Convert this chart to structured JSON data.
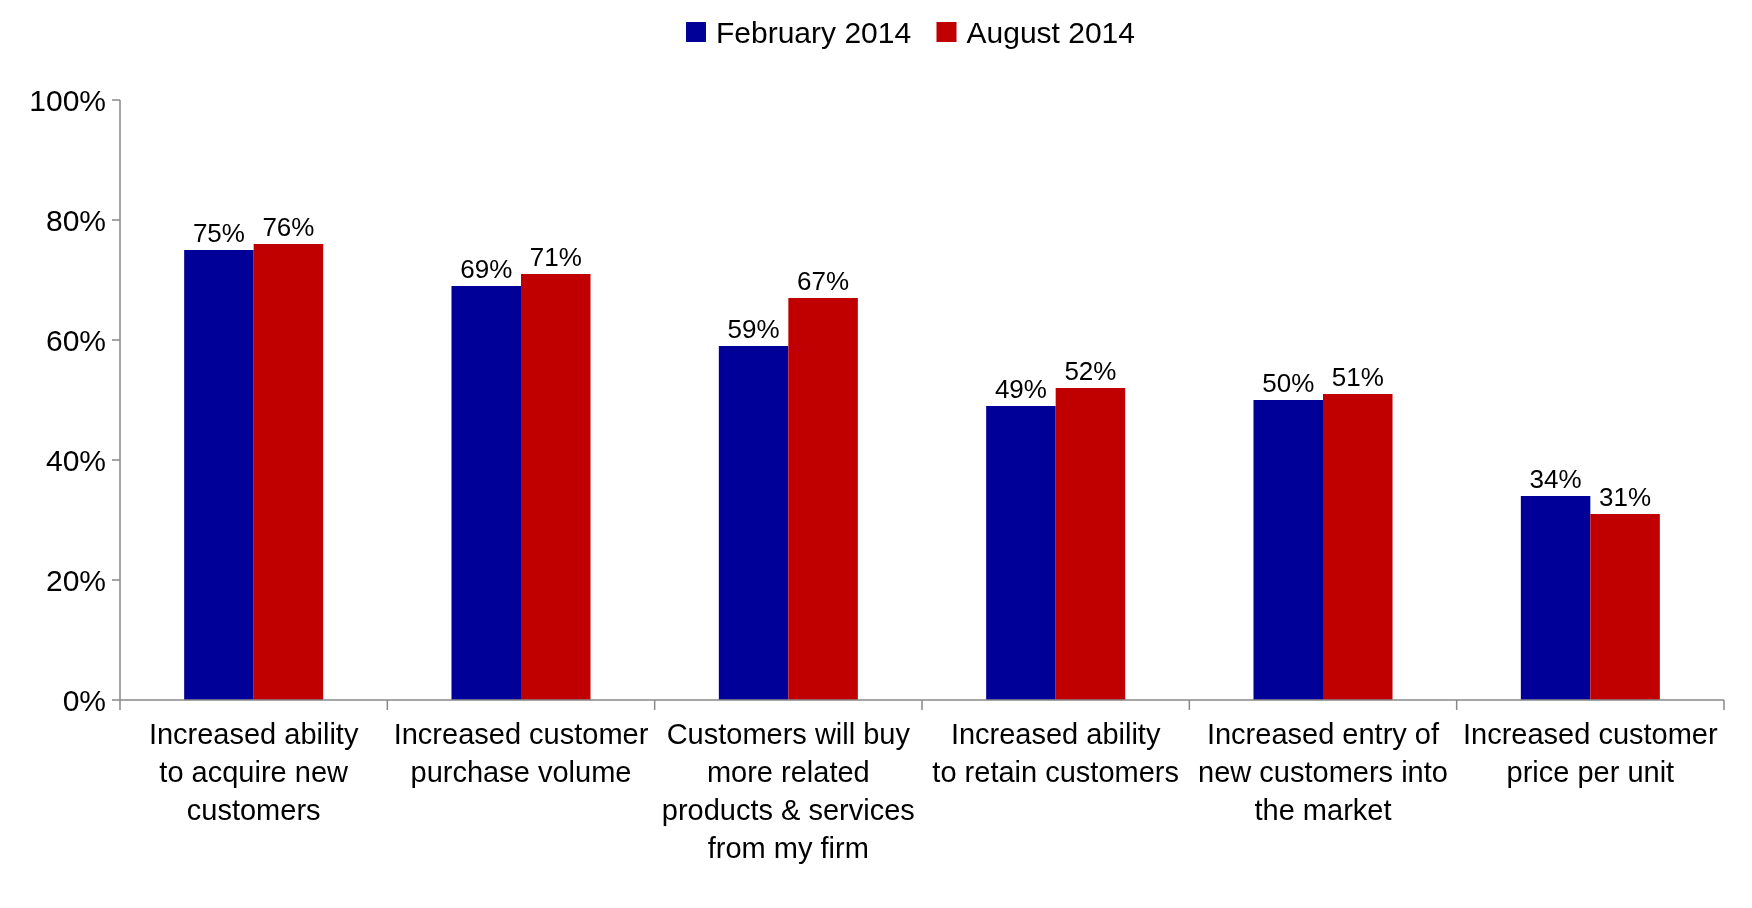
{
  "chart_data": {
    "type": "bar",
    "categories": [
      "Increased ability to acquire new customers",
      "Increased customer purchase volume",
      "Customers will buy more related products & services from my firm",
      "Increased ability to retain customers",
      "Increased entry of new customers into the market",
      "Increased customer price per unit"
    ],
    "series": [
      {
        "name": "February 2014",
        "color": "#000099",
        "values": [
          75,
          69,
          59,
          49,
          50,
          34
        ],
        "value_labels": [
          "75%",
          "69%",
          "59%",
          "49%",
          "50%",
          "34%"
        ]
      },
      {
        "name": "August 2014",
        "color": "#c00000",
        "values": [
          76,
          71,
          67,
          52,
          51,
          31
        ],
        "value_labels": [
          "76%",
          "71%",
          "67%",
          "52%",
          "51%",
          "31%"
        ]
      }
    ],
    "ylim": [
      0,
      100
    ],
    "yticks": [
      {
        "value": 0,
        "label": "0%"
      },
      {
        "value": 20,
        "label": "20%"
      },
      {
        "value": 40,
        "label": "40%"
      },
      {
        "value": 60,
        "label": "60%"
      },
      {
        "value": 80,
        "label": "80%"
      },
      {
        "value": 100,
        "label": "100%"
      }
    ],
    "legend": "top",
    "grid": false
  }
}
